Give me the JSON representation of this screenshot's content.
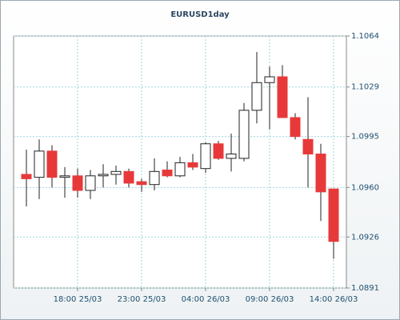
{
  "chart_data": {
    "type": "candlestick",
    "title": "EURUSD1day",
    "categories": [
      null,
      null,
      null,
      null,
      "18:00 25/03",
      null,
      null,
      null,
      null,
      "23:00 25/03",
      null,
      null,
      null,
      null,
      "04:00 26/03",
      null,
      null,
      null,
      null,
      "09:00 26/03",
      null,
      null,
      null,
      null,
      "14:00 26/03"
    ],
    "open": [
      1.0969,
      1.0967,
      1.0985,
      1.0967,
      1.0968,
      1.0958,
      1.0968,
      1.0969,
      1.0971,
      1.0964,
      1.0962,
      1.0972,
      1.0968,
      1.0977,
      1.0973,
      1.099,
      1.098,
      1.098,
      1.1013,
      1.1032,
      1.1036,
      1.1008,
      1.0993,
      1.0983,
      1.0959
    ],
    "high": [
      1.0986,
      1.0993,
      1.0989,
      1.0974,
      1.0973,
      1.0972,
      1.0976,
      1.0975,
      1.0973,
      1.0966,
      1.098,
      1.0978,
      1.0981,
      1.0983,
      1.0991,
      1.0992,
      1.0997,
      1.1018,
      1.1053,
      1.1043,
      1.1044,
      1.1011,
      1.1022,
      1.099,
      1.0959
    ],
    "low": [
      1.0947,
      1.0952,
      1.096,
      1.0953,
      1.0953,
      1.0952,
      1.096,
      1.0962,
      1.096,
      1.0957,
      1.0958,
      1.0967,
      1.0967,
      1.0972,
      1.097,
      1.0979,
      1.0971,
      1.0978,
      1.1004,
      1.1,
      1.1008,
      1.0993,
      1.096,
      1.0937,
      1.0911
    ],
    "close": [
      1.0966,
      1.0985,
      1.0967,
      1.0968,
      1.0958,
      1.0968,
      1.0969,
      1.0971,
      1.0963,
      1.0962,
      1.0971,
      1.0968,
      1.0977,
      1.0974,
      1.099,
      1.098,
      1.0983,
      1.1013,
      1.1032,
      1.1036,
      1.1008,
      1.0995,
      1.0983,
      1.0957,
      1.0923
    ],
    "up_color": "#ffffff",
    "down_color": "#e8393a",
    "ylim": [
      1.0891,
      1.1064
    ],
    "yticks": [
      1.0891,
      1.0926,
      {
        "value": 1.096,
        "label": "1.0960"
      },
      1.0995,
      1.1029,
      1.1064
    ],
    "grid": true
  }
}
